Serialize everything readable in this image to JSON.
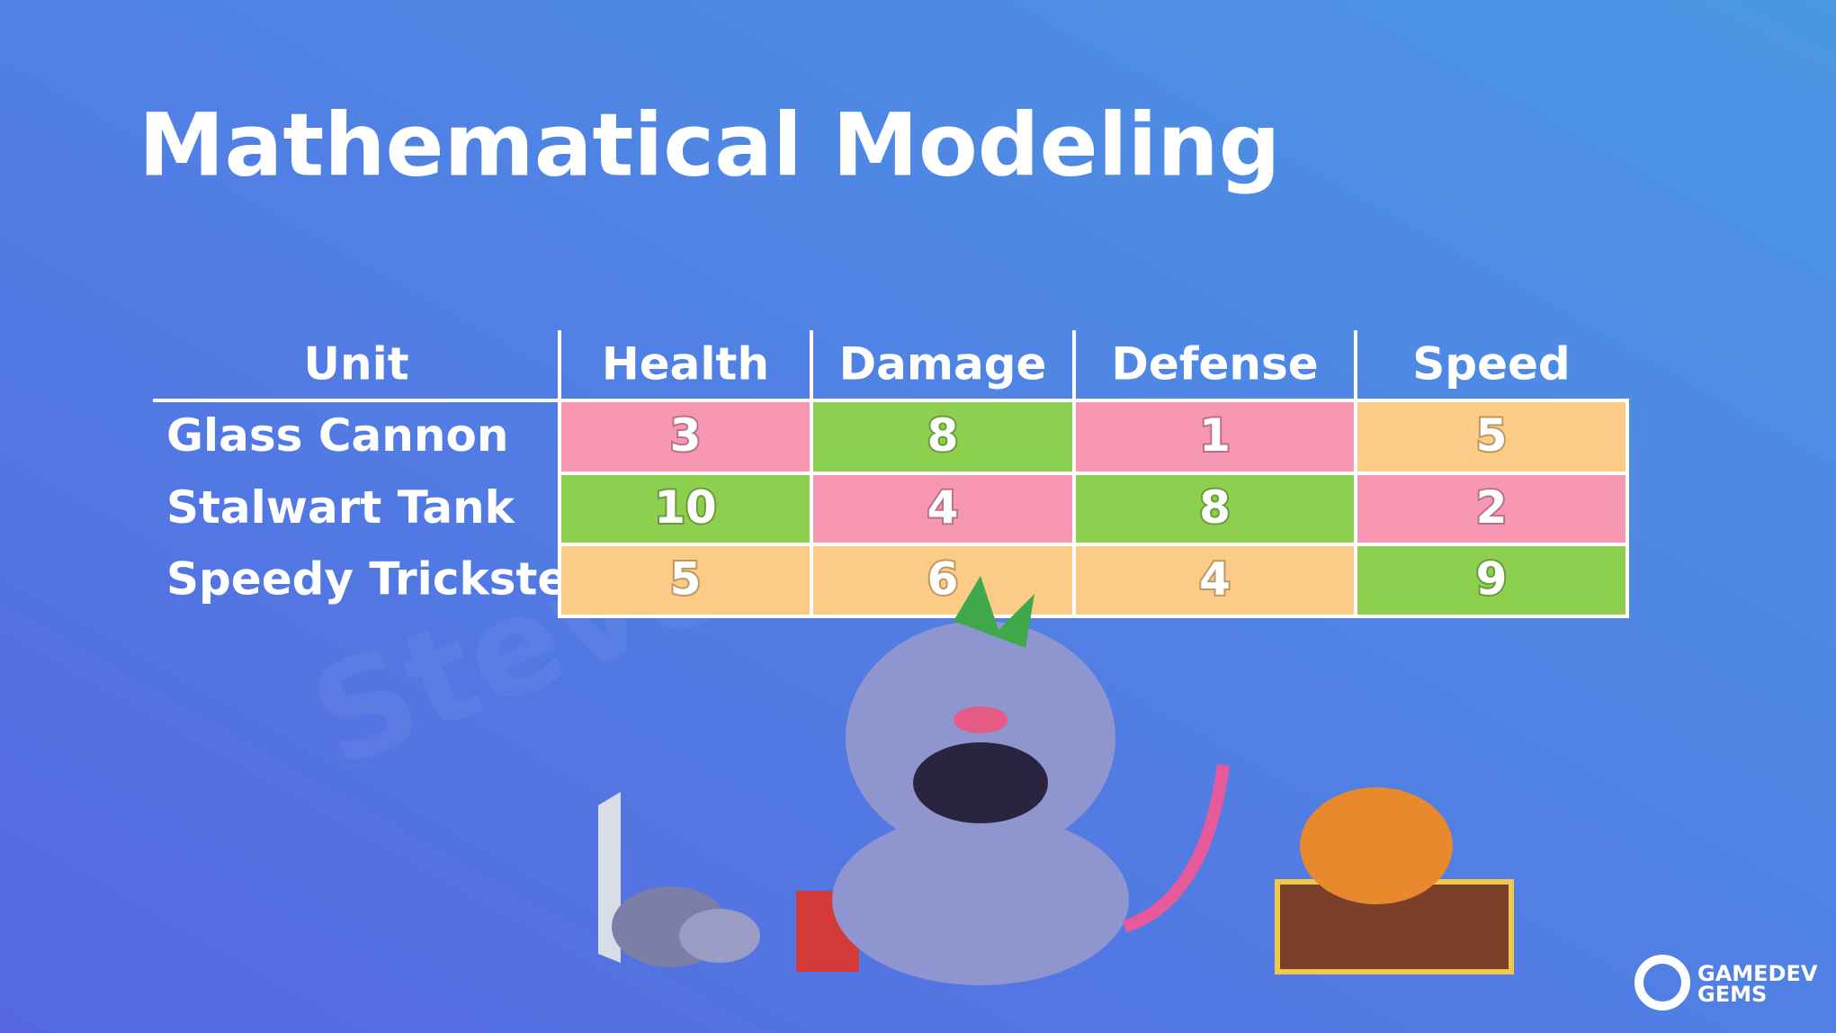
{
  "title": "Mathematical Modeling",
  "table": {
    "header": [
      "Unit",
      "Health",
      "Damage",
      "Defense",
      "Speed"
    ],
    "rows": [
      [
        "Glass Cannon",
        3,
        8,
        1,
        5
      ],
      [
        "Stalwart Tank",
        10,
        4,
        8,
        2
      ],
      [
        "Speedy Trickster",
        5,
        6,
        4,
        9
      ]
    ],
    "cell_colors": [
      [
        "#f797b4",
        "#8dcf4e",
        "#f797b4",
        "#fccb85"
      ],
      [
        "#8dcf4e",
        "#f797b4",
        "#8dcf4e",
        "#f797b4"
      ],
      [
        "#fccb85",
        "#fccb85",
        "#fccb85",
        "#8dcf4e"
      ]
    ]
  },
  "watermark": "Steve",
  "logo": {
    "line1": "GAMEDEV",
    "line2": "GEMS"
  }
}
